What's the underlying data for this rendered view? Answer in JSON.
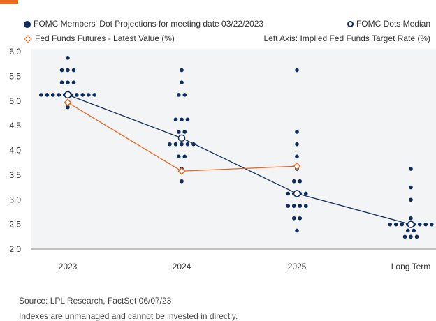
{
  "legend": {
    "dots_label": "FOMC Members' Dot Projections for meeting date 03/22/2023",
    "median_label": "FOMC Dots Median",
    "futures_label": "Fed Funds Futures - Latest Value (%)",
    "axis_note": "Left Axis: Implied Fed Funds Target Rate (%)"
  },
  "footer": {
    "source": "Source: LPL Research, FactSet  06/07/23",
    "disclaimer": "Indexes are unmanaged and cannot be invested in directly."
  },
  "colors": {
    "accent": "#f26a21",
    "dots": "#0f2d5c",
    "median_line": "#0f2d5c",
    "futures": "#e8641e",
    "plot_bg": "#f3f4f6",
    "axis": "#888888"
  },
  "chart_data": {
    "type": "scatter",
    "title": "",
    "xlabel": "",
    "ylabel": "Implied Fed Funds Target Rate (%)",
    "categories": [
      "2023",
      "2024",
      "2025",
      "Long Term"
    ],
    "ylim": [
      2.0,
      6.0
    ],
    "yticks": [
      "2.0",
      "2.5",
      "3.0",
      "3.5",
      "4.0",
      "4.5",
      "5.0",
      "5.5",
      "6.0"
    ],
    "grid": false,
    "legend_position": "top",
    "series": [
      {
        "name": "FOMC Members' Dot Projections for meeting date 03/22/2023",
        "type": "dots",
        "values": [
          [
            {
              "y": 5.875,
              "n": 1
            },
            {
              "y": 5.625,
              "n": 3
            },
            {
              "y": 5.375,
              "n": 3
            },
            {
              "y": 5.125,
              "n": 10
            },
            {
              "y": 4.875,
              "n": 1
            }
          ],
          [
            {
              "y": 5.625,
              "n": 1
            },
            {
              "y": 5.375,
              "n": 1
            },
            {
              "y": 5.125,
              "n": 2
            },
            {
              "y": 4.625,
              "n": 3
            },
            {
              "y": 4.375,
              "n": 2
            },
            {
              "y": 4.125,
              "n": 5
            },
            {
              "y": 3.875,
              "n": 2
            },
            {
              "y": 3.625,
              "n": 1
            },
            {
              "y": 3.375,
              "n": 1
            }
          ],
          [
            {
              "y": 5.625,
              "n": 1
            },
            {
              "y": 4.375,
              "n": 1
            },
            {
              "y": 4.125,
              "n": 1
            },
            {
              "y": 3.875,
              "n": 1
            },
            {
              "y": 3.625,
              "n": 1
            },
            {
              "y": 3.375,
              "n": 2
            },
            {
              "y": 3.125,
              "n": 4
            },
            {
              "y": 2.875,
              "n": 4
            },
            {
              "y": 2.625,
              "n": 2
            },
            {
              "y": 2.375,
              "n": 1
            }
          ],
          [
            {
              "y": 3.625,
              "n": 1
            },
            {
              "y": 3.25,
              "n": 1
            },
            {
              "y": 3.0,
              "n": 1
            },
            {
              "y": 2.625,
              "n": 1
            },
            {
              "y": 2.5,
              "n": 8
            },
            {
              "y": 2.375,
              "n": 2
            },
            {
              "y": 2.25,
              "n": 3
            }
          ]
        ]
      },
      {
        "name": "FOMC Dots Median",
        "type": "line",
        "values": [
          5.125,
          4.25,
          3.125,
          2.5
        ]
      },
      {
        "name": "Fed Funds Futures - Latest Value (%)",
        "type": "line",
        "values": [
          4.97,
          3.58,
          3.68,
          null
        ]
      }
    ]
  }
}
